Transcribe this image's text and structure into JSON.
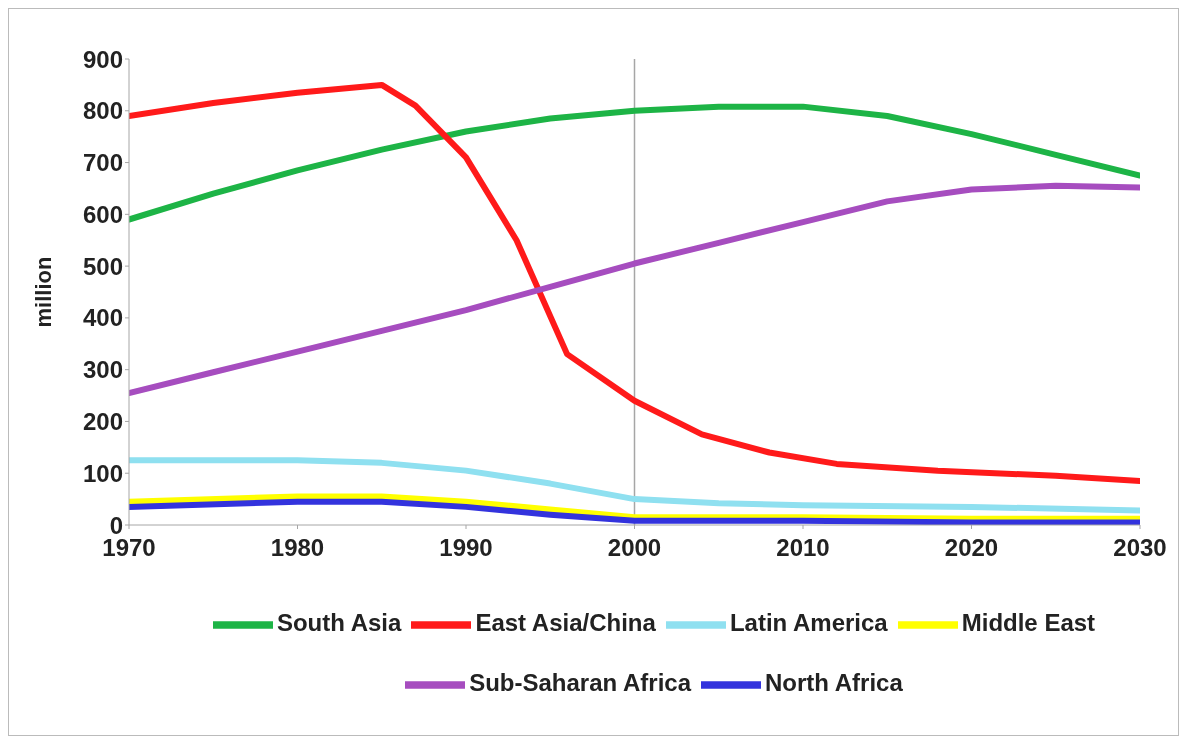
{
  "chart_data": {
    "type": "line",
    "ylabel": "million",
    "xlim": [
      1970,
      2030
    ],
    "xticks": [
      1970,
      1980,
      1990,
      2000,
      2010,
      2020,
      2030
    ],
    "ylim": [
      0,
      900
    ],
    "yticks": [
      0,
      100,
      200,
      300,
      400,
      500,
      600,
      700,
      800,
      900
    ],
    "grid": false,
    "legend": "bottom",
    "marker": "none",
    "line_style": "solid",
    "ref_lines": [
      {
        "axis": "x",
        "value": 2000,
        "color": "#a6a6a6"
      }
    ],
    "series": [
      {
        "name": "South Asia",
        "color": "#1db446",
        "x": [
          1970,
          1975,
          1980,
          1985,
          1990,
          1995,
          2000,
          2005,
          2010,
          2015,
          2020,
          2025,
          2030
        ],
        "values": [
          590,
          640,
          685,
          725,
          760,
          785,
          800,
          808,
          808,
          790,
          755,
          715,
          675
        ]
      },
      {
        "name": "East Asia/China",
        "color": "#ff1a1a",
        "x": [
          1970,
          1975,
          1980,
          1985,
          1987,
          1990,
          1993,
          1996,
          2000,
          2004,
          2008,
          2012,
          2018,
          2025,
          2030
        ],
        "values": [
          790,
          815,
          835,
          850,
          810,
          710,
          550,
          330,
          240,
          175,
          140,
          118,
          105,
          95,
          85
        ]
      },
      {
        "name": "Latin America",
        "color": "#8fe0f0",
        "x": [
          1970,
          1980,
          1985,
          1990,
          1995,
          2000,
          2005,
          2010,
          2020,
          2030
        ],
        "values": [
          125,
          125,
          120,
          105,
          80,
          50,
          42,
          38,
          35,
          28
        ]
      },
      {
        "name": "Middle East",
        "color": "#ffff00",
        "x": [
          1970,
          1980,
          1985,
          1990,
          1995,
          2000,
          2010,
          2020,
          2030
        ],
        "values": [
          45,
          55,
          55,
          45,
          30,
          15,
          15,
          12,
          12
        ]
      },
      {
        "name": "Sub-Saharan Africa",
        "color": "#a64dbf",
        "x": [
          1970,
          1975,
          1980,
          1985,
          1990,
          1995,
          2000,
          2005,
          2010,
          2015,
          2020,
          2025,
          2030
        ],
        "values": [
          255,
          295,
          335,
          375,
          415,
          460,
          505,
          545,
          585,
          625,
          648,
          655,
          652
        ]
      },
      {
        "name": "North Africa",
        "color": "#3333dd",
        "x": [
          1970,
          1980,
          1985,
          1990,
          1995,
          2000,
          2010,
          2020,
          2030
        ],
        "values": [
          35,
          45,
          45,
          35,
          20,
          8,
          8,
          5,
          5
        ]
      }
    ]
  }
}
